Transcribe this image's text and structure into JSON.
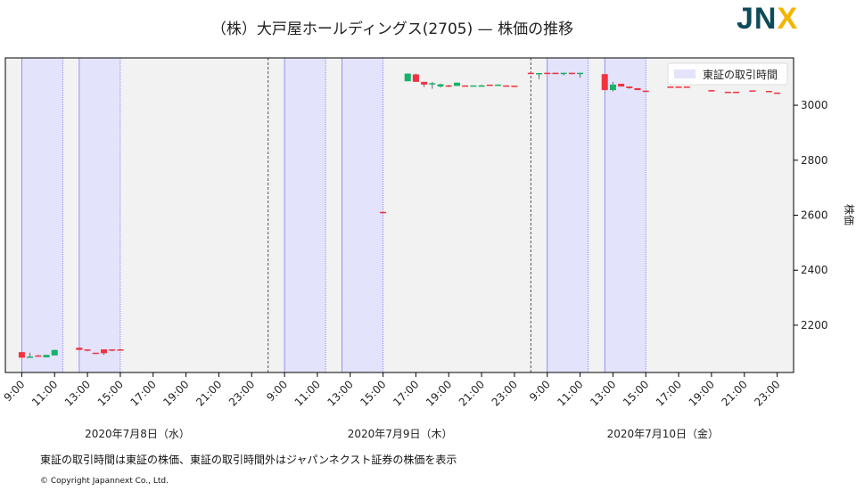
{
  "title": "（株）大戸屋ホールディングス(2705) — 株価の推移",
  "logo": {
    "text_main": "JN",
    "text_accent": "X"
  },
  "footnote": "東証の取引時間は東証の株価、東証の取引時間外はジャパンネクスト証券の株価を表示",
  "copyright": "© Copyright Japannext Co., Ltd.",
  "colors": {
    "up": "#17b26a",
    "down": "#f2323f",
    "session": "#e3e3fb",
    "bg": "#f2f2f2"
  },
  "chart_data": {
    "type": "candlestick",
    "ylabel": "株価",
    "ylim": [
      2028,
      3172
    ],
    "yticks": [
      2200,
      2400,
      2600,
      2800,
      3000
    ],
    "xticks": [
      "9:00",
      "11:00",
      "13:00",
      "15:00",
      "17:00",
      "19:00",
      "21:00",
      "23:00"
    ],
    "days": [
      "2020年7月8日（水）",
      "2020年7月9日（木）",
      "2020年7月10日（金）"
    ],
    "legend": {
      "label": "東証の取引時間",
      "position": "top-right"
    },
    "sessions": [
      [
        "9:00",
        "11:30"
      ],
      [
        "12:30",
        "15:00"
      ]
    ],
    "candles": [
      {
        "d": 0,
        "t": "9:00",
        "o": 2102,
        "h": 2102,
        "l": 2082,
        "c": 2082
      },
      {
        "d": 0,
        "t": "9:30",
        "o": 2083,
        "h": 2100,
        "l": 2083,
        "c": 2086
      },
      {
        "d": 0,
        "t": "10:00",
        "o": 2090,
        "h": 2092,
        "l": 2088,
        "c": 2088
      },
      {
        "d": 0,
        "t": "10:30",
        "o": 2083,
        "h": 2092,
        "l": 2083,
        "c": 2092
      },
      {
        "d": 0,
        "t": "11:00",
        "o": 2090,
        "h": 2110,
        "l": 2090,
        "c": 2110
      },
      {
        "d": 0,
        "t": "12:30",
        "o": 2118,
        "h": 2118,
        "l": 2110,
        "c": 2110
      },
      {
        "d": 0,
        "t": "13:00",
        "o": 2112,
        "h": 2112,
        "l": 2105,
        "c": 2110
      },
      {
        "d": 0,
        "t": "13:30",
        "o": 2100,
        "h": 2100,
        "l": 2098,
        "c": 2098
      },
      {
        "d": 0,
        "t": "14:00",
        "o": 2112,
        "h": 2112,
        "l": 2092,
        "c": 2098
      },
      {
        "d": 0,
        "t": "14:30",
        "o": 2112,
        "h": 2112,
        "l": 2105,
        "c": 2109
      },
      {
        "d": 0,
        "t": "15:00",
        "o": 2112,
        "h": 2112,
        "l": 2111,
        "c": 2111
      },
      {
        "d": 1,
        "t": "15:00",
        "o": 2612,
        "h": 2612,
        "l": 2610,
        "c": 2610
      },
      {
        "d": 1,
        "t": "16:30",
        "o": 3087,
        "h": 3115,
        "l": 3087,
        "c": 3115
      },
      {
        "d": 1,
        "t": "17:00",
        "o": 3112,
        "h": 3115,
        "l": 3085,
        "c": 3085
      },
      {
        "d": 1,
        "t": "17:30",
        "o": 3085,
        "h": 3085,
        "l": 3066,
        "c": 3075
      },
      {
        "d": 1,
        "t": "18:00",
        "o": 3078,
        "h": 3085,
        "l": 3060,
        "c": 3080
      },
      {
        "d": 1,
        "t": "18:30",
        "o": 3068,
        "h": 3078,
        "l": 3064,
        "c": 3076
      },
      {
        "d": 1,
        "t": "19:00",
        "o": 3072,
        "h": 3074,
        "l": 3066,
        "c": 3069
      },
      {
        "d": 1,
        "t": "19:30",
        "o": 3070,
        "h": 3082,
        "l": 3070,
        "c": 3082
      },
      {
        "d": 1,
        "t": "20:00",
        "o": 3072,
        "h": 3072,
        "l": 3070,
        "c": 3070
      },
      {
        "d": 1,
        "t": "20:30",
        "o": 3070,
        "h": 3072,
        "l": 3070,
        "c": 3072
      },
      {
        "d": 1,
        "t": "21:00",
        "o": 3070,
        "h": 3075,
        "l": 3070,
        "c": 3072
      },
      {
        "d": 1,
        "t": "21:30",
        "o": 3075,
        "h": 3075,
        "l": 3073,
        "c": 3073
      },
      {
        "d": 1,
        "t": "22:00",
        "o": 3073,
        "h": 3076,
        "l": 3073,
        "c": 3075
      },
      {
        "d": 1,
        "t": "22:30",
        "o": 3072,
        "h": 3072,
        "l": 3070,
        "c": 3070
      },
      {
        "d": 1,
        "t": "23:00",
        "o": 3071,
        "h": 3071,
        "l": 3069,
        "c": 3069
      },
      {
        "d": 2,
        "t": "8:00",
        "o": 3118,
        "h": 3118,
        "l": 3116,
        "c": 3116
      },
      {
        "d": 2,
        "t": "8:30",
        "o": 3114,
        "h": 3117,
        "l": 3095,
        "c": 3117
      },
      {
        "d": 2,
        "t": "9:00",
        "o": 3118,
        "h": 3118,
        "l": 3116,
        "c": 3116
      },
      {
        "d": 2,
        "t": "9:30",
        "o": 3118,
        "h": 3118,
        "l": 3116,
        "c": 3116
      },
      {
        "d": 2,
        "t": "10:00",
        "o": 3115,
        "h": 3118,
        "l": 3108,
        "c": 3118
      },
      {
        "d": 2,
        "t": "10:30",
        "o": 3118,
        "h": 3118,
        "l": 3112,
        "c": 3114
      },
      {
        "d": 2,
        "t": "11:00",
        "o": 3115,
        "h": 3118,
        "l": 3100,
        "c": 3118
      },
      {
        "d": 2,
        "t": "12:30",
        "o": 3113,
        "h": 3113,
        "l": 3055,
        "c": 3055
      },
      {
        "d": 2,
        "t": "13:00",
        "o": 3055,
        "h": 3085,
        "l": 3050,
        "c": 3075
      },
      {
        "d": 2,
        "t": "13:30",
        "o": 3078,
        "h": 3078,
        "l": 3068,
        "c": 3068
      },
      {
        "d": 2,
        "t": "14:00",
        "o": 3068,
        "h": 3068,
        "l": 3060,
        "c": 3062
      },
      {
        "d": 2,
        "t": "14:30",
        "o": 3062,
        "h": 3062,
        "l": 3055,
        "c": 3055
      },
      {
        "d": 2,
        "t": "15:00",
        "o": 3053,
        "h": 3053,
        "l": 3051,
        "c": 3051
      },
      {
        "d": 2,
        "t": "16:30",
        "o": 3068,
        "h": 3068,
        "l": 3066,
        "c": 3066
      },
      {
        "d": 2,
        "t": "17:00",
        "o": 3068,
        "h": 3068,
        "l": 3066,
        "c": 3066
      },
      {
        "d": 2,
        "t": "17:30",
        "o": 3068,
        "h": 3068,
        "l": 3066,
        "c": 3066
      },
      {
        "d": 2,
        "t": "19:00",
        "o": 3055,
        "h": 3055,
        "l": 3050,
        "c": 3050
      },
      {
        "d": 2,
        "t": "20:00",
        "o": 3049,
        "h": 3049,
        "l": 3047,
        "c": 3047
      },
      {
        "d": 2,
        "t": "20:30",
        "o": 3049,
        "h": 3049,
        "l": 3047,
        "c": 3047
      },
      {
        "d": 2,
        "t": "21:30",
        "o": 3054,
        "h": 3054,
        "l": 3052,
        "c": 3052
      },
      {
        "d": 2,
        "t": "22:30",
        "o": 3052,
        "h": 3052,
        "l": 3050,
        "c": 3050
      },
      {
        "d": 2,
        "t": "23:00",
        "o": 3046,
        "h": 3046,
        "l": 3044,
        "c": 3044
      }
    ]
  }
}
